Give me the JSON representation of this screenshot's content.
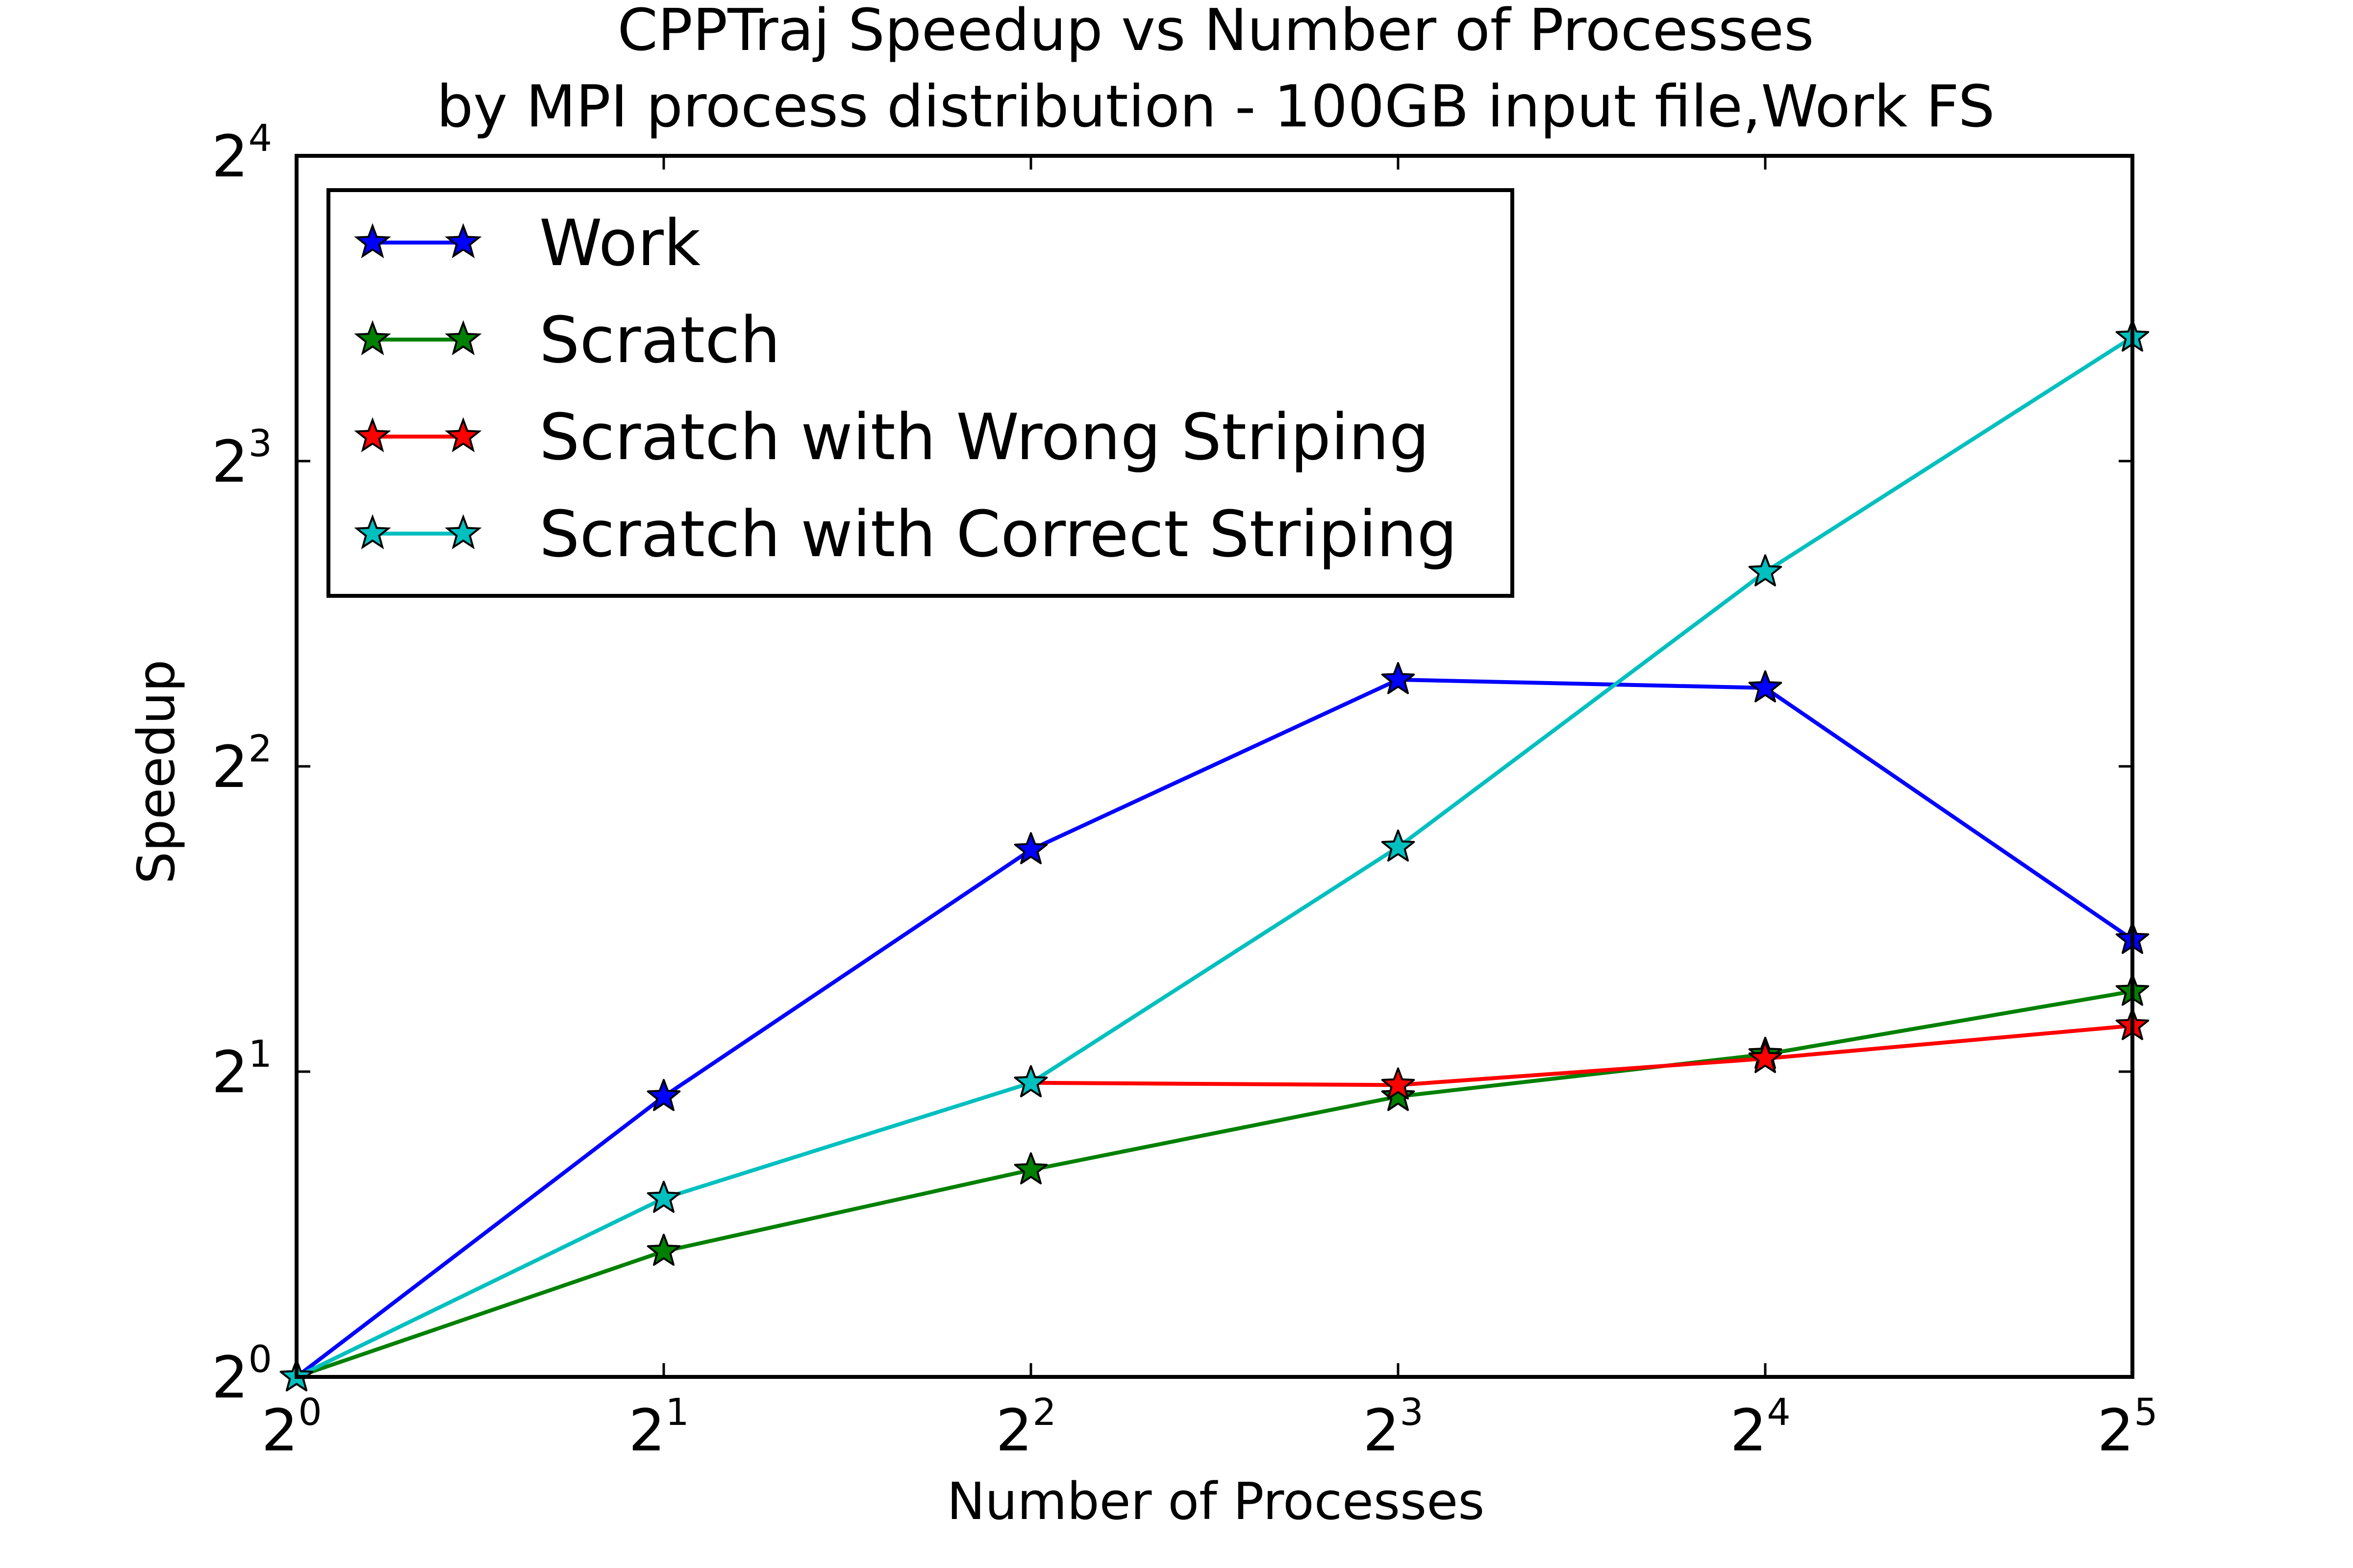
{
  "chart_data": {
    "type": "line",
    "title": "CPPTraj Speedup vs Number of Processes",
    "subtitle": "by MPI process distribution - 100GB input file,Work FS",
    "xlabel": "Number of Processes",
    "ylabel": "Speedup",
    "x_scale": "log2",
    "y_scale": "log2",
    "xlim": [
      1,
      32
    ],
    "ylim": [
      1,
      16
    ],
    "x": [
      1,
      2,
      4,
      8,
      16,
      32
    ],
    "x_ticks": [
      {
        "base": "2",
        "exp": "0",
        "value": 1
      },
      {
        "base": "2",
        "exp": "1",
        "value": 2
      },
      {
        "base": "2",
        "exp": "2",
        "value": 4
      },
      {
        "base": "2",
        "exp": "3",
        "value": 8
      },
      {
        "base": "2",
        "exp": "4",
        "value": 16
      },
      {
        "base": "2",
        "exp": "5",
        "value": 32
      }
    ],
    "y_ticks": [
      {
        "base": "2",
        "exp": "0",
        "value": 1
      },
      {
        "base": "2",
        "exp": "1",
        "value": 2
      },
      {
        "base": "2",
        "exp": "2",
        "value": 4
      },
      {
        "base": "2",
        "exp": "3",
        "value": 8
      },
      {
        "base": "2",
        "exp": "4",
        "value": 16
      }
    ],
    "legend_position": "top-left",
    "grid": false,
    "marker": "star",
    "series": [
      {
        "name": "Work",
        "color": "#0000ff",
        "x": [
          1,
          2,
          4,
          8,
          16,
          32
        ],
        "values": [
          1.0,
          1.89,
          3.31,
          4.87,
          4.78,
          2.7
        ]
      },
      {
        "name": "Scratch",
        "color": "#008000",
        "x": [
          1,
          2,
          4,
          8,
          16,
          32
        ],
        "values": [
          1.0,
          1.33,
          1.6,
          1.89,
          2.08,
          2.4
        ]
      },
      {
        "name": "Scratch with Wrong Striping",
        "color": "#ff0000",
        "x": [
          4,
          8,
          16,
          32
        ],
        "values": [
          1.95,
          1.94,
          2.06,
          2.22
        ]
      },
      {
        "name": "Scratch with Correct Striping",
        "color": "#00bfbf",
        "x": [
          1,
          2,
          4,
          8,
          16,
          32
        ],
        "values": [
          1.0,
          1.5,
          1.95,
          3.33,
          6.22,
          10.6
        ]
      }
    ]
  }
}
